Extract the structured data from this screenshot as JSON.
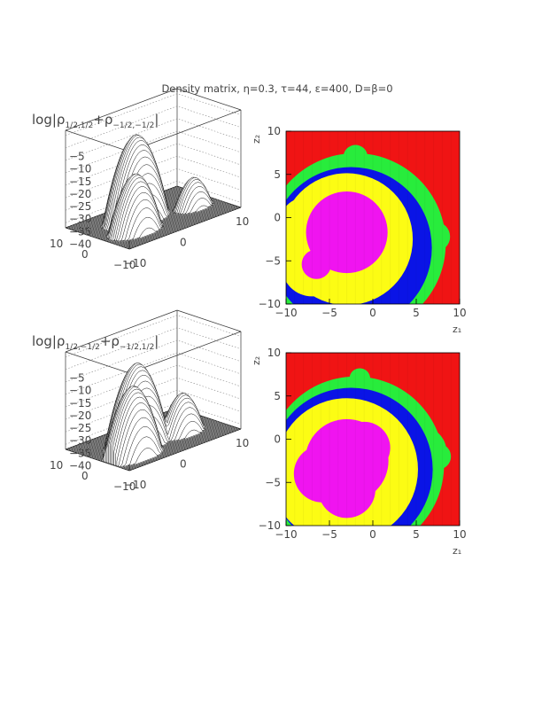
{
  "figure": {
    "title": "Density matrix, η=0.3, τ=44, ε=400, D=β=0"
  },
  "colors": {
    "red": "#f01414",
    "green": "#28ec3c",
    "blue": "#0a14e6",
    "yellow": "#fcfc14",
    "magenta": "#f014f0",
    "mesh": "#111111",
    "grid": "#888888"
  },
  "chart_data": [
    {
      "type": "surface",
      "panel": "top-left",
      "title": "log|ρ_{1/2,1/2}+ρ_{-1/2,-1/2}|",
      "title_main": "log|ρ",
      "title_sub1": "1/2,1/2",
      "title_mid": "+ρ",
      "title_sub2": "−1/2,−1/2",
      "title_end": "|",
      "z_ticks": [
        "−5",
        "−10",
        "−15",
        "−20",
        "−25",
        "−30",
        "−35",
        "−40"
      ],
      "z_range": [
        -42,
        -3
      ],
      "x_ticks": [
        "−10",
        "0",
        "10"
      ],
      "y_ticks": [
        "10",
        "0",
        "−10"
      ],
      "peaks": [
        {
          "x": -2,
          "y": 2,
          "z": -8
        },
        {
          "x": -5,
          "y": -3,
          "z": -19
        },
        {
          "x": 6,
          "y": -2,
          "z": -30
        }
      ]
    },
    {
      "type": "heatmap",
      "panel": "top-right",
      "xlabel": "z₁",
      "ylabel": "z₂",
      "x_ticks": [
        "−10",
        "−5",
        "0",
        "5",
        "10"
      ],
      "y_ticks": [
        "10",
        "5",
        "0",
        "−5",
        "−10"
      ],
      "xlim": [
        -10,
        10
      ],
      "ylim": [
        -10,
        10
      ],
      "levels": [
        "red",
        "green",
        "blue",
        "yellow",
        "magenta"
      ]
    },
    {
      "type": "surface",
      "panel": "bottom-left",
      "title": "log|ρ_{1/2,-1/2}+ρ_{-1/2,1/2}|",
      "title_main": "log|ρ",
      "title_sub1": "1/2,−1/2",
      "title_mid": "+ρ",
      "title_sub2": "−1/2,1/2",
      "title_end": "|",
      "z_ticks": [
        "−5",
        "−10",
        "−15",
        "−20",
        "−25",
        "−30",
        "−35",
        "−40"
      ],
      "z_range": [
        -42,
        -3
      ],
      "x_ticks": [
        "−10",
        "0",
        "10"
      ],
      "y_ticks": [
        "10",
        "0",
        "−10"
      ],
      "peaks": [
        {
          "x": -3,
          "y": 0,
          "z": -9
        },
        {
          "x": -6,
          "y": -4,
          "z": -14
        },
        {
          "x": 4,
          "y": -2,
          "z": -26
        }
      ]
    },
    {
      "type": "heatmap",
      "panel": "bottom-right",
      "xlabel": "z₁",
      "ylabel": "z₂",
      "x_ticks": [
        "−10",
        "−5",
        "0",
        "5",
        "10"
      ],
      "y_ticks": [
        "10",
        "5",
        "0",
        "−5",
        "−10"
      ],
      "xlim": [
        -10,
        10
      ],
      "ylim": [
        -10,
        10
      ],
      "levels": [
        "red",
        "green",
        "blue",
        "yellow",
        "magenta"
      ]
    }
  ]
}
